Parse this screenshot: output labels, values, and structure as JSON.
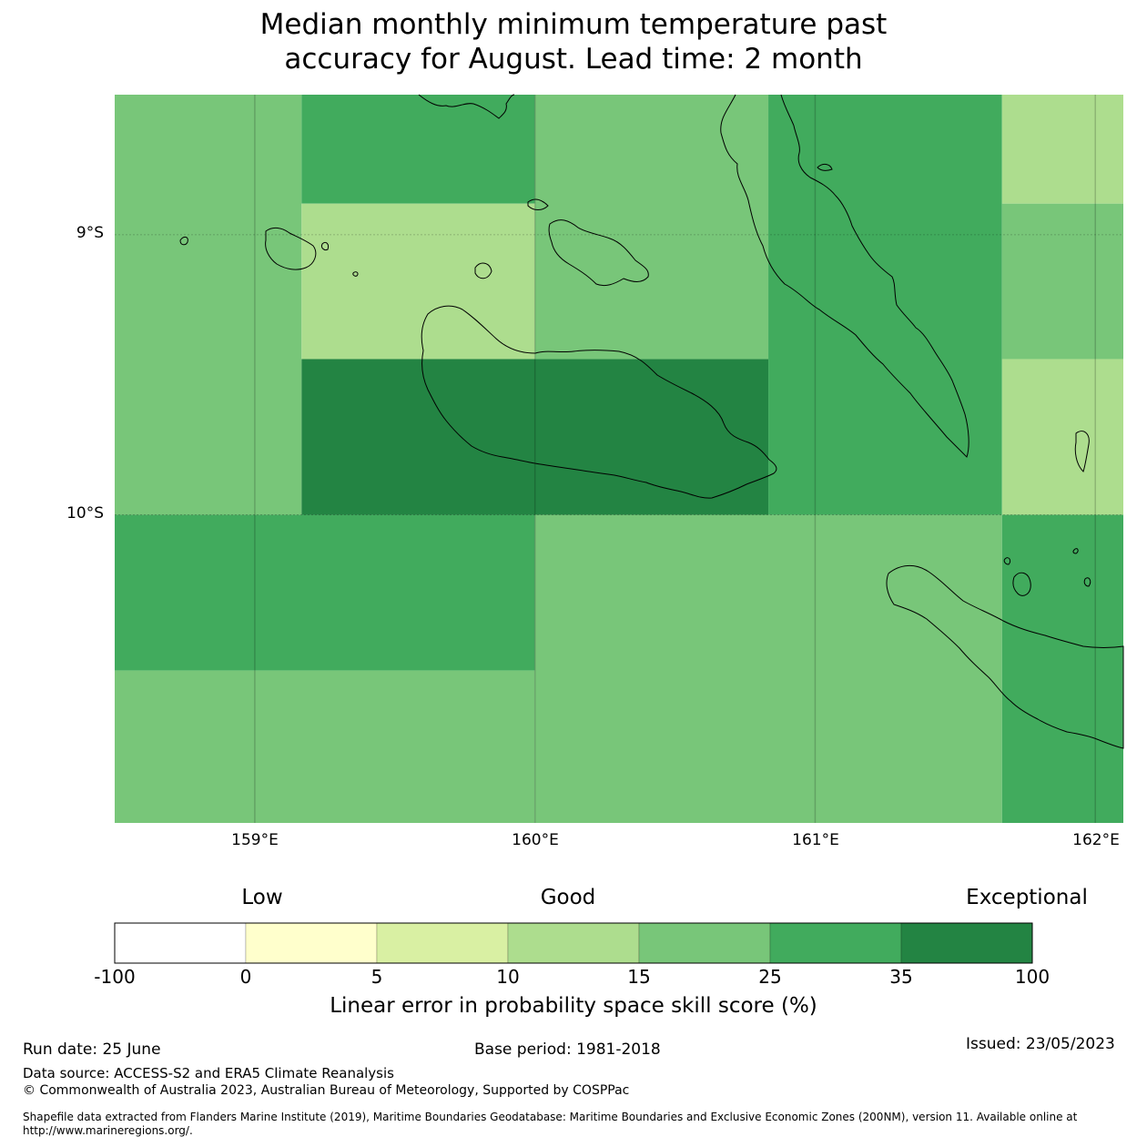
{
  "title_line1": "Median monthly minimum temperature past",
  "title_line2": "accuracy for August. Lead time: 2 month",
  "map": {
    "lon_range": [
      158.5,
      162.1
    ],
    "lat_range": [
      -8.5,
      -11.1
    ],
    "lat_labels": [
      "9°S",
      "10°S"
    ],
    "lon_labels": [
      "159°E",
      "160°E",
      "161°E",
      "162°E"
    ],
    "cells": [
      {
        "lon": [
          158.5,
          159.167
        ],
        "lat": [
          -8.5,
          -10.0
        ],
        "category": 4
      },
      {
        "lon": [
          159.167,
          160.0
        ],
        "lat": [
          -8.5,
          -8.889
        ],
        "category": 5
      },
      {
        "lon": [
          159.167,
          160.0
        ],
        "lat": [
          -8.889,
          -9.444
        ],
        "category": 3
      },
      {
        "lon": [
          159.167,
          160.833
        ],
        "lat": [
          -9.444,
          -10.0
        ],
        "category": 6
      },
      {
        "lon": [
          160.0,
          160.833
        ],
        "lat": [
          -8.5,
          -9.444
        ],
        "category": 4
      },
      {
        "lon": [
          160.833,
          161.667
        ],
        "lat": [
          -8.5,
          -10.0
        ],
        "category": 5
      },
      {
        "lon": [
          161.667,
          162.1
        ],
        "lat": [
          -8.5,
          -8.889
        ],
        "category": 3
      },
      {
        "lon": [
          161.667,
          162.1
        ],
        "lat": [
          -8.889,
          -9.444
        ],
        "category": 4
      },
      {
        "lon": [
          161.667,
          162.1
        ],
        "lat": [
          -9.444,
          -10.0
        ],
        "category": 3
      },
      {
        "lon": [
          158.5,
          160.0
        ],
        "lat": [
          -10.0,
          -10.556
        ],
        "category": 5
      },
      {
        "lon": [
          158.5,
          160.0
        ],
        "lat": [
          -10.556,
          -11.1
        ],
        "category": 4
      },
      {
        "lon": [
          160.0,
          161.667
        ],
        "lat": [
          -10.0,
          -11.1
        ],
        "category": 4
      },
      {
        "lon": [
          161.667,
          162.1
        ],
        "lat": [
          -10.0,
          -11.1
        ],
        "category": 5
      }
    ]
  },
  "colorbar": {
    "categories": [
      "Low",
      "Good",
      "Exceptional"
    ],
    "bounds": [
      "-100",
      "0",
      "5",
      "10",
      "15",
      "25",
      "35",
      "100"
    ],
    "colors": [
      "#ffffff",
      "#ffffcc",
      "#d9f0a3",
      "#addd8e",
      "#78c679",
      "#41ab5d",
      "#238443"
    ],
    "label": "Linear error in probability space skill score (%)"
  },
  "footer": {
    "run_date": "Run date: 25 June",
    "base_period": "Base period: 1981-2018",
    "issued": "Issued: 23/05/2023",
    "data_source": "Data source: ACCESS-S2 and ERA5 Climate Reanalysis",
    "copyright": "© Commonwealth of Australia 2023, Australian Bureau of Meteorology, Supported by COSPPac",
    "shapefile": "Shapefile data extracted from Flanders Marine Institute (2019), Maritime Boundaries Geodatabase: Maritime Boundaries and Exclusive Economic Zones (200NM), version 11. Available online at http://www.marineregions.org/."
  }
}
